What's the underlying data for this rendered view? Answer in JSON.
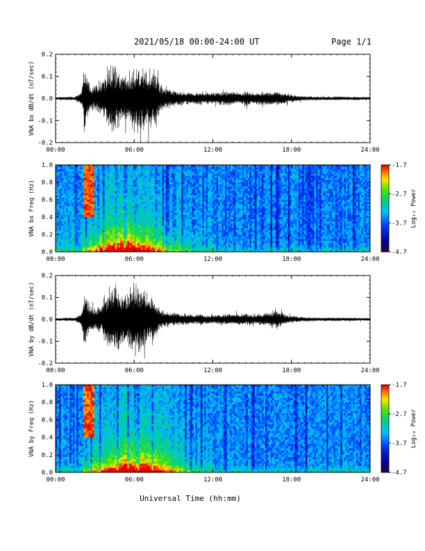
{
  "header": {
    "title": "2021/05/18  00:00-24:00 UT",
    "page": "Page 1/1"
  },
  "footer": {
    "xlabel": "Universal Time (hh:mm)"
  },
  "colorbar": {
    "label": "Log₁₀ Power",
    "ticks": [
      "-1.7",
      "-2.7",
      "-3.7",
      "-4.7"
    ],
    "range": [
      -4.7,
      -1.7
    ]
  },
  "chart_data": [
    {
      "type": "line",
      "ylabel": "VNA bx dB/dt (nT/sec)",
      "xlim": [
        0,
        24
      ],
      "ylim": [
        -0.2,
        0.2
      ],
      "xticks": [
        "00:00",
        "06:00",
        "12:00",
        "18:00",
        "24:00"
      ],
      "yticks": [
        "0.2",
        "0.1",
        "0.0",
        "-0.1",
        "-0.2"
      ],
      "envelope": {
        "x": [
          0,
          1.5,
          2.0,
          2.2,
          2.6,
          3.0,
          3.5,
          4.0,
          4.5,
          5.0,
          5.5,
          6.0,
          6.5,
          7.0,
          7.5,
          8.0,
          9.0,
          10.0,
          11.0,
          12.0,
          13.0,
          14.0,
          14.5,
          15.0,
          16.0,
          17.0,
          17.5,
          18.0,
          19.0,
          20.0,
          21.0,
          22.0,
          23.0,
          24.0
        ],
        "amplitude": [
          0.008,
          0.01,
          0.04,
          0.17,
          0.08,
          0.07,
          0.09,
          0.16,
          0.2,
          0.12,
          0.13,
          0.16,
          0.19,
          0.15,
          0.17,
          0.07,
          0.04,
          0.03,
          0.035,
          0.03,
          0.04,
          0.03,
          0.045,
          0.03,
          0.04,
          0.035,
          0.03,
          0.02,
          0.012,
          0.01,
          0.01,
          0.01,
          0.009,
          0.008
        ]
      }
    },
    {
      "type": "heatmap",
      "ylabel": "VNA bx Freq (Hz)",
      "xlim": [
        0,
        24
      ],
      "ylim": [
        0.0,
        1.0
      ],
      "xticks": [
        "00:00",
        "06:00",
        "12:00",
        "18:00",
        "24:00"
      ],
      "yticks": [
        "1.0",
        "0.8",
        "0.6",
        "0.4",
        "0.2",
        "0.0"
      ],
      "zlim": [
        -4.7,
        -1.7
      ],
      "features": [
        {
          "name": "broadband",
          "t_start": 2.0,
          "t_end": 8.5,
          "f_max": 0.35,
          "peak_t": 5.5
        },
        {
          "name": "pulsation",
          "t_start": 2.2,
          "t_end": 2.9,
          "f_min": 0.4,
          "f_max": 1.0
        }
      ]
    },
    {
      "type": "line",
      "ylabel": "VNA by dB/dt (nT/sec)",
      "xlim": [
        0,
        24
      ],
      "ylim": [
        -0.2,
        0.2
      ],
      "xticks": [
        "00:00",
        "06:00",
        "12:00",
        "18:00",
        "24:00"
      ],
      "yticks": [
        "0.2",
        "0.1",
        "0.0",
        "-0.1",
        "-0.2"
      ],
      "envelope": {
        "x": [
          0,
          1.5,
          2.0,
          2.2,
          2.6,
          3.0,
          3.5,
          4.0,
          4.5,
          5.0,
          5.5,
          6.0,
          6.5,
          7.0,
          7.5,
          8.0,
          9.0,
          10.0,
          11.0,
          12.0,
          13.0,
          14.0,
          14.5,
          15.0,
          16.0,
          17.0,
          17.5,
          18.0,
          19.0,
          20.0,
          21.0,
          22.0,
          23.0,
          24.0
        ],
        "amplitude": [
          0.008,
          0.01,
          0.04,
          0.16,
          0.07,
          0.06,
          0.08,
          0.15,
          0.19,
          0.14,
          0.15,
          0.2,
          0.18,
          0.14,
          0.12,
          0.05,
          0.035,
          0.03,
          0.03,
          0.025,
          0.03,
          0.028,
          0.03,
          0.025,
          0.035,
          0.045,
          0.03,
          0.02,
          0.012,
          0.01,
          0.01,
          0.01,
          0.009,
          0.008
        ]
      }
    },
    {
      "type": "heatmap",
      "ylabel": "VNA by Freq (Hz)",
      "xlim": [
        0,
        24
      ],
      "ylim": [
        0.0,
        1.0
      ],
      "xticks": [
        "00:00",
        "06:00",
        "12:00",
        "18:00",
        "24:00"
      ],
      "yticks": [
        "1.0",
        "0.8",
        "0.6",
        "0.4",
        "0.2",
        "0.0"
      ],
      "zlim": [
        -4.7,
        -1.7
      ],
      "features": [
        {
          "name": "broadband",
          "t_start": 2.0,
          "t_end": 8.5,
          "f_max": 0.35,
          "peak_t": 6.0
        },
        {
          "name": "pulsation",
          "t_start": 2.2,
          "t_end": 2.9,
          "f_min": 0.4,
          "f_max": 1.0
        }
      ]
    }
  ]
}
